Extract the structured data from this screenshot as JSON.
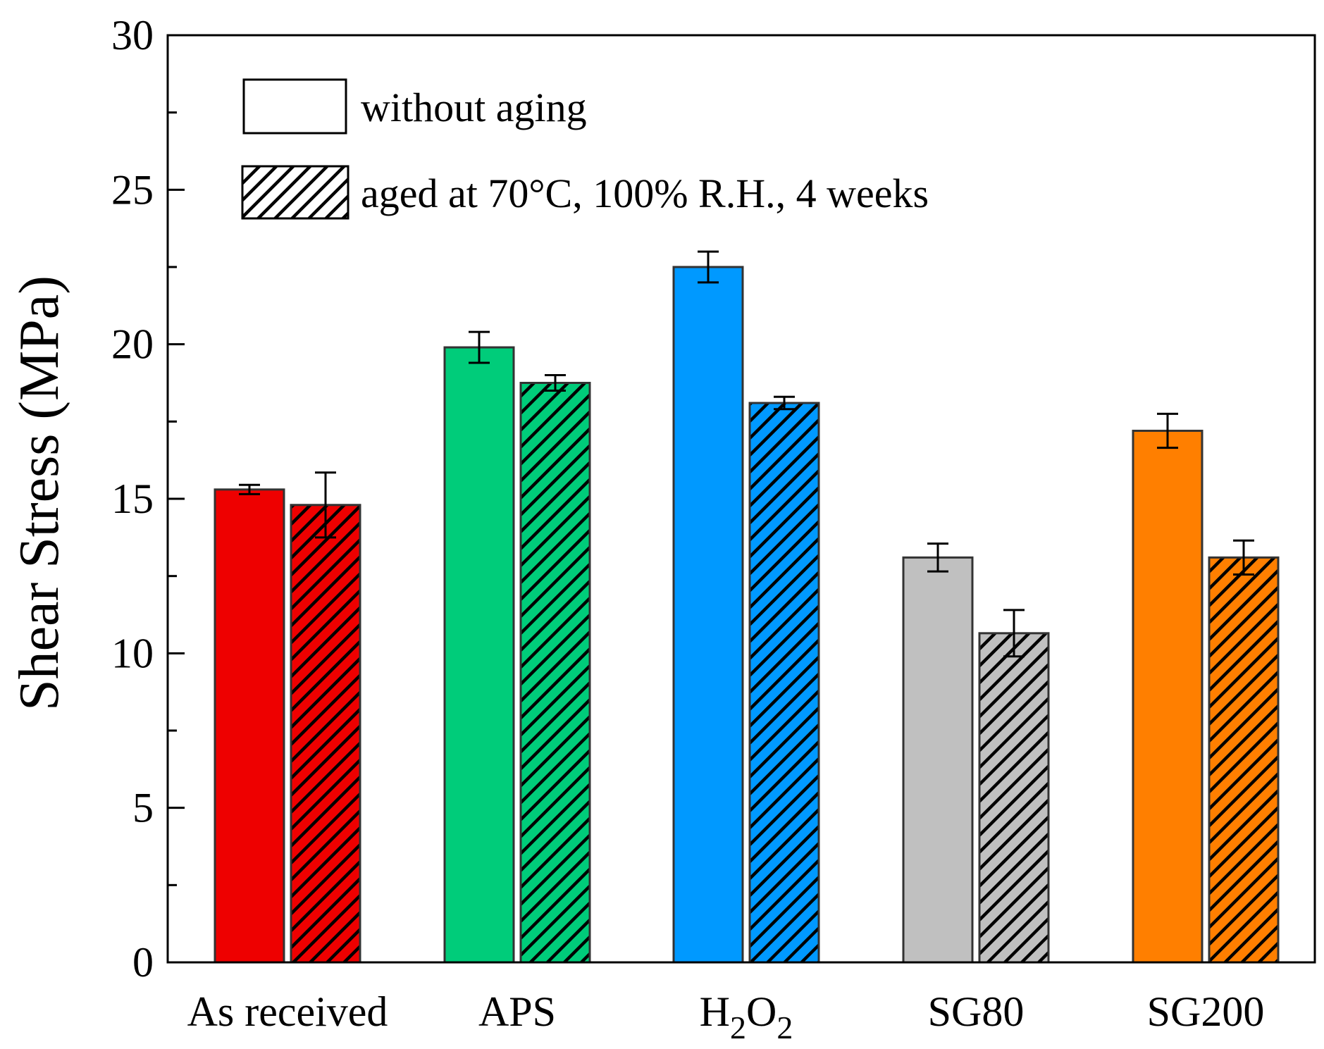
{
  "chart_data": {
    "type": "bar",
    "title": "",
    "xlabel": "",
    "ylabel": "Shear Stress (MPa)",
    "ylim": [
      0,
      30
    ],
    "yticks": [
      0,
      5,
      10,
      15,
      20,
      25,
      30
    ],
    "categories": [
      {
        "label": "As received",
        "color": "#ee0000"
      },
      {
        "label": "APS",
        "color": "#00cc7a"
      },
      {
        "label": "H2O2",
        "base": "H",
        "sub1": "2",
        "mid": "O",
        "sub2": "2",
        "color": "#0099ff"
      },
      {
        "label": "SG80",
        "color": "#c0c0c0"
      },
      {
        "label": "SG200",
        "color": "#ff7f00"
      }
    ],
    "series": [
      {
        "name": "without aging",
        "hatched": false,
        "values": [
          15.3,
          19.9,
          22.5,
          13.1,
          17.2
        ],
        "errors": [
          0.15,
          0.5,
          0.5,
          0.45,
          0.55
        ]
      },
      {
        "name": "aged at 70°C, 100% R.H., 4 weeks",
        "hatched": true,
        "values": [
          14.8,
          18.75,
          18.1,
          10.65,
          13.1
        ],
        "errors": [
          1.05,
          0.25,
          0.2,
          0.75,
          0.55
        ]
      }
    ],
    "legend": {
      "position": "top-left"
    },
    "grid": false
  }
}
